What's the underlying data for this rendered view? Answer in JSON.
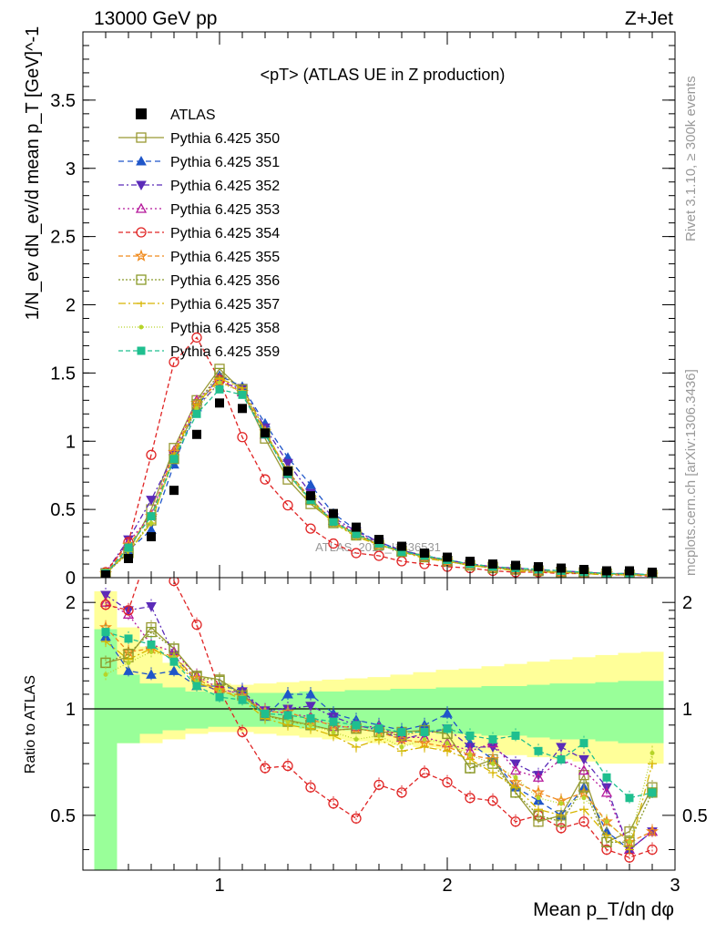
{
  "header": {
    "left": "13000 GeV pp",
    "right": "Z+Jet"
  },
  "side_labels": {
    "rivet": "Rivet 3.1.10, ≥ 300k events",
    "mcplots": "mcplots.cern.ch [arXiv:1306.3436]"
  },
  "chart_data": {
    "type": "line",
    "title": "<pT> (ATLAS UE in Z production)",
    "watermark": "ATLAS_2019_I1736531",
    "xlabel": "Mean p_T/dη dφ",
    "ylabel": "1/N_ev dN_ev/d mean p_T [GeV]^-1",
    "ratio_ylabel": "Ratio to ATLAS",
    "xlim": [
      0.4,
      3.0
    ],
    "ylim": [
      0,
      4.0
    ],
    "ratio_ylim": [
      0.35,
      2.35
    ],
    "x_ticks": [
      1,
      2,
      3
    ],
    "y_ticks": [
      0,
      0.5,
      1,
      1.5,
      2,
      2.5,
      3,
      3.5
    ],
    "y_tick_labels": [
      "0",
      "0.5",
      "1",
      "1.5",
      "2",
      "2.5",
      "3",
      "3.5"
    ],
    "ratio_ticks": [
      0.5,
      1,
      2
    ],
    "ratio_tick_labels": [
      "0.5",
      "1",
      "2"
    ],
    "legend_position": "top-left",
    "x": [
      0.5,
      0.6,
      0.7,
      0.8,
      0.9,
      1.0,
      1.1,
      1.2,
      1.3,
      1.4,
      1.5,
      1.6,
      1.7,
      1.8,
      1.9,
      2.0,
      2.1,
      2.2,
      2.3,
      2.4,
      2.5,
      2.6,
      2.7,
      2.8,
      2.9
    ],
    "data": {
      "name": "ATLAS",
      "values": [
        0.02,
        0.14,
        0.3,
        0.64,
        1.05,
        1.28,
        1.24,
        1.06,
        0.78,
        0.6,
        0.47,
        0.37,
        0.28,
        0.23,
        0.18,
        0.15,
        0.12,
        0.1,
        0.09,
        0.08,
        0.07,
        0.06,
        0.05,
        0.05,
        0.04
      ]
    },
    "ratio_bands": {
      "inner": [
        [
          0.35,
          1.68
        ],
        [
          0.8,
          1.25
        ],
        [
          0.85,
          1.18
        ],
        [
          0.87,
          1.15
        ],
        [
          0.88,
          1.12
        ],
        [
          0.89,
          1.11
        ],
        [
          0.89,
          1.11
        ],
        [
          0.89,
          1.11
        ],
        [
          0.89,
          1.11
        ],
        [
          0.88,
          1.12
        ],
        [
          0.88,
          1.12
        ],
        [
          0.87,
          1.13
        ],
        [
          0.87,
          1.13
        ],
        [
          0.86,
          1.14
        ],
        [
          0.86,
          1.14
        ],
        [
          0.85,
          1.15
        ],
        [
          0.85,
          1.15
        ],
        [
          0.84,
          1.16
        ],
        [
          0.84,
          1.16
        ],
        [
          0.83,
          1.17
        ],
        [
          0.82,
          1.18
        ],
        [
          0.82,
          1.18
        ],
        [
          0.81,
          1.19
        ],
        [
          0.8,
          1.2
        ],
        [
          0.8,
          1.2
        ]
      ],
      "outer": [
        [
          0.35,
          2.15
        ],
        [
          0.8,
          1.7
        ],
        [
          0.8,
          1.5
        ],
        [
          0.82,
          1.35
        ],
        [
          0.85,
          1.22
        ],
        [
          0.86,
          1.18
        ],
        [
          0.86,
          1.17
        ],
        [
          0.85,
          1.18
        ],
        [
          0.84,
          1.19
        ],
        [
          0.83,
          1.2
        ],
        [
          0.82,
          1.21
        ],
        [
          0.81,
          1.22
        ],
        [
          0.8,
          1.23
        ],
        [
          0.79,
          1.25
        ],
        [
          0.78,
          1.27
        ],
        [
          0.77,
          1.29
        ],
        [
          0.76,
          1.3
        ],
        [
          0.75,
          1.32
        ],
        [
          0.74,
          1.34
        ],
        [
          0.73,
          1.36
        ],
        [
          0.72,
          1.38
        ],
        [
          0.71,
          1.4
        ],
        [
          0.7,
          1.42
        ],
        [
          0.7,
          1.44
        ],
        [
          0.7,
          1.45
        ]
      ]
    },
    "series": [
      {
        "name": "Pythia 6.425 350",
        "color": "#999933",
        "marker": "square-open",
        "dash": "solid",
        "values": [
          0.03,
          0.19,
          0.5,
          0.95,
          1.3,
          1.53,
          1.37,
          1.02,
          0.72,
          0.54,
          0.41,
          0.32,
          0.24,
          0.2,
          0.16,
          0.12,
          0.09,
          0.08,
          0.06,
          0.05,
          0.04,
          0.04,
          0.03,
          0.02,
          0.02
        ],
        "ratio": [
          1.35,
          1.4,
          1.7,
          1.48,
          1.24,
          1.21,
          1.1,
          0.96,
          0.93,
          0.9,
          0.87,
          0.88,
          0.86,
          0.86,
          0.87,
          0.85,
          0.68,
          0.72,
          0.58,
          0.48,
          0.5,
          0.65,
          0.42,
          0.45,
          0.6
        ]
      },
      {
        "name": "Pythia 6.425 351",
        "color": "#1f56c9",
        "marker": "triangle-up",
        "dash": "6,4",
        "values": [
          0.03,
          0.2,
          0.35,
          0.83,
          1.25,
          1.48,
          1.4,
          1.13,
          0.88,
          0.68,
          0.47,
          0.35,
          0.26,
          0.2,
          0.16,
          0.13,
          0.1,
          0.08,
          0.06,
          0.05,
          0.04,
          0.04,
          0.03,
          0.03,
          0.02
        ],
        "ratio": [
          1.6,
          1.28,
          1.25,
          1.28,
          1.16,
          1.16,
          1.13,
          0.95,
          1.1,
          1.1,
          0.97,
          0.93,
          0.9,
          0.87,
          0.9,
          0.97,
          0.8,
          0.72,
          0.6,
          0.55,
          0.5,
          0.6,
          0.45,
          0.4,
          0.45
        ]
      },
      {
        "name": "Pythia 6.425 352",
        "color": "#5b2bb8",
        "marker": "triangle-down",
        "dash": "6,3,2,3",
        "values": [
          0.04,
          0.28,
          0.57,
          0.9,
          1.25,
          1.43,
          1.39,
          1.1,
          0.84,
          0.62,
          0.44,
          0.34,
          0.26,
          0.2,
          0.16,
          0.13,
          0.1,
          0.08,
          0.07,
          0.06,
          0.05,
          0.04,
          0.03,
          0.03,
          0.02
        ],
        "ratio": [
          2.1,
          1.9,
          1.95,
          1.42,
          1.19,
          1.12,
          1.12,
          0.99,
          1.0,
          1.02,
          0.95,
          0.9,
          0.87,
          0.82,
          0.85,
          0.88,
          0.78,
          0.78,
          0.7,
          0.65,
          0.78,
          0.72,
          0.6,
          0.4,
          0.45
        ]
      },
      {
        "name": "Pythia 6.425 353",
        "color": "#b5189b",
        "marker": "triangle-open",
        "dash": "2,3",
        "values": [
          0.04,
          0.26,
          0.46,
          0.93,
          1.3,
          1.46,
          1.36,
          1.05,
          0.76,
          0.57,
          0.42,
          0.33,
          0.25,
          0.19,
          0.15,
          0.12,
          0.1,
          0.08,
          0.06,
          0.05,
          0.04,
          0.04,
          0.03,
          0.02,
          0.02
        ],
        "ratio": [
          2.0,
          1.85,
          1.52,
          1.45,
          1.24,
          1.14,
          1.1,
          0.99,
          0.97,
          0.95,
          0.89,
          0.89,
          0.89,
          0.83,
          0.83,
          0.8,
          0.76,
          0.8,
          0.67,
          0.64,
          0.72,
          0.67,
          0.58,
          0.4,
          0.45
        ]
      },
      {
        "name": "Pythia 6.425 354",
        "color": "#e02424",
        "marker": "circle-open",
        "dash": "5,3",
        "values": [
          0.04,
          0.26,
          0.9,
          1.58,
          1.76,
          1.45,
          1.03,
          0.72,
          0.53,
          0.36,
          0.25,
          0.18,
          0.16,
          0.12,
          0.1,
          0.08,
          0.07,
          0.05,
          0.04,
          0.04,
          0.03,
          0.03,
          0.02,
          0.02,
          0.01
        ],
        "ratio": [
          1.97,
          1.9,
          2.95,
          2.3,
          1.73,
          1.13,
          0.86,
          0.68,
          0.69,
          0.6,
          0.54,
          0.49,
          0.61,
          0.58,
          0.66,
          0.62,
          0.56,
          0.55,
          0.48,
          0.5,
          0.46,
          0.48,
          0.4,
          0.38,
          0.4
        ]
      },
      {
        "name": "Pythia 6.425 355",
        "color": "#f08a1c",
        "marker": "star-open",
        "dash": "5,3",
        "values": [
          0.03,
          0.24,
          0.45,
          0.92,
          1.28,
          1.44,
          1.36,
          1.07,
          0.78,
          0.58,
          0.41,
          0.32,
          0.24,
          0.19,
          0.15,
          0.12,
          0.09,
          0.07,
          0.06,
          0.05,
          0.04,
          0.03,
          0.03,
          0.02,
          0.02
        ],
        "ratio": [
          1.7,
          1.45,
          1.48,
          1.4,
          1.22,
          1.12,
          1.09,
          0.98,
          0.98,
          0.93,
          0.9,
          0.88,
          0.86,
          0.82,
          0.8,
          0.78,
          0.74,
          0.72,
          0.62,
          0.58,
          0.55,
          0.58,
          0.48,
          0.42,
          0.45
        ]
      },
      {
        "name": "Pythia 6.425 356",
        "color": "#8a9a2a",
        "marker": "square-open",
        "dash": "2,2",
        "values": [
          0.03,
          0.18,
          0.42,
          0.87,
          1.27,
          1.5,
          1.38,
          1.06,
          0.78,
          0.57,
          0.4,
          0.31,
          0.24,
          0.19,
          0.15,
          0.12,
          0.09,
          0.07,
          0.06,
          0.05,
          0.04,
          0.03,
          0.03,
          0.02,
          0.02
        ],
        "ratio": [
          1.35,
          1.43,
          1.65,
          1.48,
          1.23,
          1.2,
          1.09,
          0.96,
          0.92,
          0.9,
          0.87,
          0.88,
          0.86,
          0.84,
          0.87,
          0.85,
          0.68,
          0.7,
          0.58,
          0.5,
          0.48,
          0.6,
          0.42,
          0.42,
          0.58
        ]
      },
      {
        "name": "Pythia 6.425 357",
        "color": "#d7b500",
        "marker": "tri-point",
        "dash": "8,3,2,3",
        "values": [
          0.03,
          0.19,
          0.4,
          0.9,
          1.27,
          1.46,
          1.39,
          1.08,
          0.76,
          0.56,
          0.4,
          0.3,
          0.24,
          0.19,
          0.14,
          0.12,
          0.09,
          0.07,
          0.05,
          0.04,
          0.04,
          0.03,
          0.02,
          0.02,
          0.02
        ],
        "ratio": [
          1.55,
          1.38,
          1.48,
          1.38,
          1.18,
          1.14,
          1.06,
          0.94,
          0.9,
          0.88,
          0.84,
          0.78,
          0.82,
          0.76,
          0.78,
          0.76,
          0.72,
          0.66,
          0.6,
          0.52,
          0.5,
          0.52,
          0.44,
          0.4,
          0.7
        ]
      },
      {
        "name": "Pythia 6.425 358",
        "color": "#b6d42a",
        "marker": "dot",
        "dash": "1,2",
        "values": [
          0.03,
          0.2,
          0.4,
          0.88,
          1.24,
          1.43,
          1.36,
          1.06,
          0.76,
          0.56,
          0.4,
          0.31,
          0.24,
          0.19,
          0.15,
          0.12,
          0.09,
          0.07,
          0.06,
          0.05,
          0.04,
          0.03,
          0.03,
          0.02,
          0.02
        ],
        "ratio": [
          1.25,
          1.35,
          1.45,
          1.4,
          1.2,
          1.12,
          1.08,
          0.96,
          0.92,
          0.9,
          0.86,
          0.82,
          0.84,
          0.78,
          0.82,
          0.8,
          0.74,
          0.7,
          0.64,
          0.56,
          0.54,
          0.56,
          0.48,
          0.42,
          0.75
        ]
      },
      {
        "name": "Pythia 6.425 359",
        "color": "#1fbf8f",
        "marker": "square",
        "dash": "5,3",
        "values": [
          0.03,
          0.22,
          0.45,
          0.87,
          1.2,
          1.38,
          1.34,
          1.05,
          0.76,
          0.57,
          0.41,
          0.32,
          0.25,
          0.19,
          0.16,
          0.13,
          0.1,
          0.08,
          0.07,
          0.06,
          0.05,
          0.04,
          0.03,
          0.03,
          0.02
        ],
        "ratio": [
          1.65,
          1.58,
          1.52,
          1.36,
          1.16,
          1.08,
          1.06,
          0.97,
          0.96,
          0.94,
          0.92,
          0.9,
          0.88,
          0.86,
          0.86,
          0.88,
          0.84,
          0.82,
          0.84,
          0.76,
          0.72,
          0.8,
          0.64,
          0.56,
          0.58
        ]
      }
    ]
  }
}
